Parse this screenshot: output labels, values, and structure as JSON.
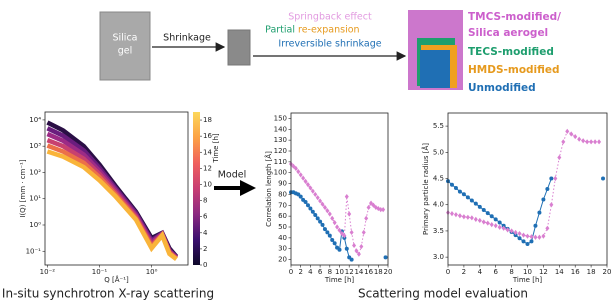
{
  "diagram": {
    "silica_gel": [
      "Silica",
      "gel"
    ],
    "shrinkage": "Shrinkage",
    "springback": "Springback effect",
    "partial": "Partial",
    "reexpansion": "re-expansion",
    "irreversible": "Irreversible shrinkage",
    "legend": [
      "TMCS-modified/",
      "Silica aerogel",
      "TECS-modified",
      "HMDS-modified",
      "Unmodified"
    ],
    "model": "Model"
  },
  "captions": [
    "In-situ synchrotron X-ray scattering",
    "Scattering model evaluation"
  ],
  "chart_data": [
    {
      "type": "line",
      "xscale": "log",
      "yscale": "log",
      "xlabel": "Q [Å⁻¹]",
      "ylabel": "I(Q) [mm · cm⁻¹]",
      "xlim": [
        0.009,
        5
      ],
      "ylim": [
        0.03,
        20000
      ],
      "xticks": [
        {
          "value": 0.01,
          "label": "10⁻²"
        },
        {
          "value": 0.1,
          "label": "10⁻¹"
        },
        {
          "value": 1,
          "label": "10⁰"
        }
      ],
      "yticks": [
        {
          "value": 0.1,
          "label": "10⁻¹"
        },
        {
          "value": 1,
          "label": "10⁰"
        },
        {
          "value": 10,
          "label": "10¹"
        },
        {
          "value": 100,
          "label": "10²"
        },
        {
          "value": 1000,
          "label": "10³"
        },
        {
          "value": 10000,
          "label": "10⁴"
        }
      ],
      "x": [
        0.01,
        0.02,
        0.05,
        0.1,
        0.2,
        0.5,
        1,
        1.6,
        2.2,
        3
      ],
      "series": [
        {
          "color": "#2a0f45",
          "values": [
            8000,
            4000,
            1000,
            200,
            32,
            3.2,
            0.32,
            0.5,
            0.13,
            0.063
          ]
        },
        {
          "color": "#6a1d7e",
          "values": [
            4800,
            2500,
            690,
            150,
            26,
            2.8,
            0.26,
            0.48,
            0.11,
            0.06
          ]
        },
        {
          "color": "#9c2b86",
          "values": [
            2900,
            1600,
            480,
            115,
            22,
            2.4,
            0.22,
            0.46,
            0.1,
            0.058
          ]
        },
        {
          "color": "#c8416f",
          "values": [
            1700,
            1000,
            330,
            87,
            18,
            2.1,
            0.18,
            0.44,
            0.095,
            0.055
          ]
        },
        {
          "color": "#ec7048",
          "values": [
            1050,
            630,
            230,
            66,
            15,
            1.8,
            0.15,
            0.42,
            0.087,
            0.052
          ]
        },
        {
          "color": "#f9b43a",
          "values": [
            630,
            400,
            160,
            50,
            12.6,
            1.6,
            0.13,
            0.4,
            0.08,
            0.05
          ]
        }
      ],
      "colorbar": {
        "label": "Time [h]",
        "lim": [
          0,
          19
        ],
        "ticks": [
          0,
          2,
          4,
          6,
          8,
          10,
          12,
          14,
          16,
          18
        ],
        "colors": [
          "#0d0829",
          "#3b0f6f",
          "#8c2981",
          "#c83e73",
          "#f0605d",
          "#fca245",
          "#fcd75a"
        ]
      }
    },
    {
      "type": "line",
      "xlabel": "Time [h]",
      "ylabel": "Correlation length [Å]",
      "xlim": [
        0,
        20
      ],
      "ylim": [
        15,
        155
      ],
      "xticks": [
        0,
        2,
        4,
        6,
        8,
        10,
        12,
        14,
        16,
        18,
        20
      ],
      "yticks": [
        20,
        30,
        40,
        50,
        60,
        70,
        80,
        90,
        100,
        110,
        120,
        130,
        140,
        150
      ],
      "series": [
        {
          "color": "#1f6fb4",
          "marker": "circle",
          "linestyle": "solid",
          "x": [
            0,
            0.5,
            1,
            1.5,
            2,
            2.5,
            3,
            3.5,
            4,
            4.5,
            5,
            5.5,
            6,
            6.5,
            7,
            7.5,
            8,
            8.5,
            9,
            9.5,
            10,
            10.5,
            11,
            11.5,
            12,
            12.5,
            16,
            19.5
          ],
          "values": [
            82,
            82,
            81,
            80,
            78,
            75,
            73,
            70,
            67,
            64,
            61,
            58,
            55,
            52,
            48,
            45,
            42,
            38,
            35,
            31,
            29,
            46,
            40,
            30,
            22,
            20,
            null,
            22
          ]
        },
        {
          "color": "#d97fd0",
          "marker": "diamond",
          "linestyle": "dotted",
          "x": [
            0,
            0.5,
            1,
            1.5,
            2,
            2.5,
            3,
            3.5,
            4,
            4.5,
            5,
            5.5,
            6,
            6.5,
            7,
            7.5,
            8,
            8.5,
            9,
            9.5,
            10,
            10.5,
            11,
            11.5,
            12,
            12.5,
            13,
            13.5,
            14,
            14.5,
            15,
            15.5,
            16,
            16.5,
            17,
            17.5,
            18,
            18.5,
            19
          ],
          "values": [
            108,
            106,
            104,
            101,
            98,
            95,
            92,
            89,
            86,
            83,
            80,
            77,
            74,
            71,
            68,
            65,
            62,
            58,
            54,
            50,
            47,
            44,
            42,
            78,
            62,
            45,
            33,
            28,
            25,
            32,
            45,
            58,
            68,
            72,
            70,
            68,
            67,
            66,
            66
          ]
        }
      ]
    },
    {
      "type": "line",
      "xlabel": "Time [h]",
      "ylabel": "Primary particle radius [Å]",
      "xlim": [
        0,
        20
      ],
      "ylim": [
        2.85,
        5.75
      ],
      "xticks": [
        0,
        2,
        4,
        6,
        8,
        10,
        12,
        14,
        16,
        18,
        20
      ],
      "yticks": [
        {
          "value": 3,
          "label": "3.0"
        },
        3.5,
        {
          "value": 4,
          "label": "4.0"
        },
        4.5,
        {
          "value": 5,
          "label": "5.0"
        },
        5.5
      ],
      "series": [
        {
          "color": "#1f6fb4",
          "marker": "circle",
          "linestyle": "solid",
          "x": [
            0,
            0.5,
            1,
            1.5,
            2,
            2.5,
            3,
            3.5,
            4,
            4.5,
            5,
            5.5,
            6,
            6.5,
            7,
            7.5,
            8,
            8.5,
            9,
            9.5,
            10,
            10.5,
            11,
            11.5,
            12,
            12.5,
            13,
            16,
            19.5
          ],
          "values": [
            4.45,
            4.38,
            4.32,
            4.25,
            4.2,
            4.14,
            4.08,
            4.02,
            3.96,
            3.9,
            3.84,
            3.78,
            3.72,
            3.66,
            3.6,
            3.54,
            3.48,
            3.42,
            3.36,
            3.3,
            3.25,
            3.3,
            3.6,
            3.85,
            4.1,
            4.3,
            4.5,
            null,
            4.5
          ]
        },
        {
          "color": "#d97fd0",
          "marker": "diamond",
          "linestyle": "dotted",
          "x": [
            0,
            0.5,
            1,
            1.5,
            2,
            2.5,
            3,
            3.5,
            4,
            4.5,
            5,
            5.5,
            6,
            6.5,
            7,
            7.5,
            8,
            8.5,
            9,
            9.5,
            10,
            10.5,
            11,
            11.5,
            12,
            12.5,
            13,
            13.5,
            14,
            14.5,
            15,
            15.5,
            16,
            16.5,
            17,
            17.5,
            18,
            18.5,
            19
          ],
          "values": [
            3.85,
            3.83,
            3.81,
            3.79,
            3.77,
            3.76,
            3.75,
            3.72,
            3.7,
            3.67,
            3.65,
            3.62,
            3.6,
            3.57,
            3.55,
            3.52,
            3.5,
            3.47,
            3.45,
            3.42,
            3.4,
            3.39,
            3.38,
            3.38,
            3.4,
            3.55,
            4.0,
            4.5,
            4.9,
            5.2,
            5.4,
            5.35,
            5.3,
            5.25,
            5.22,
            5.2,
            5.2,
            5.2,
            5.2
          ]
        }
      ]
    }
  ]
}
